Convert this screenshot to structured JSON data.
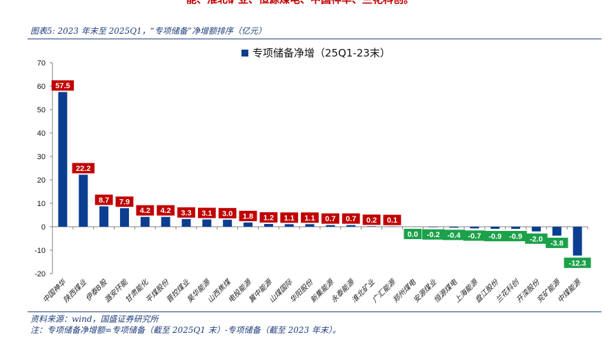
{
  "header": {
    "cut_text": "能、淮北矿业、恒源煤电、中国神华、兰花科创。",
    "figure_title": "图表5:  2023 年末至 2025Q1，“专项储备”净增额排序（亿元）"
  },
  "footer": {
    "source": "资料来源：wind，国盛证券研究所",
    "note": "注：专项储备净增额=专项储备（截至 2025Q1 末）-专项储备（截至 2023 年末）。"
  },
  "colors": {
    "bar": "#0b3d91",
    "positive_label_bg": "#c00000",
    "negative_label_bg": "#1ca14a",
    "rule": "#1f3d7a"
  },
  "chart_data": {
    "type": "bar",
    "legend": "专项储备净增（25Q1-23末）",
    "legend_position": "top-center",
    "ylim": [
      -20,
      70
    ],
    "yticks": [
      70,
      60,
      50,
      40,
      30,
      20,
      10,
      0,
      -10,
      -20
    ],
    "grid": false,
    "categories": [
      "中国神华",
      "陕西煤业",
      "伊泰B股",
      "潞安环能",
      "甘肃能化",
      "平煤股份",
      "晋控煤业",
      "昊华能源",
      "山西焦煤",
      "电投能源",
      "冀中能源",
      "山煤国际",
      "华阳股份",
      "新集能源",
      "永泰能源",
      "淮北矿业",
      "广汇能源",
      "郑州煤电",
      "安源煤业",
      "恒源煤电",
      "上海能源",
      "盘江股份",
      "兰花科创",
      "开滦股份",
      "兖矿能源",
      "中煤能源"
    ],
    "values": [
      57.5,
      22.2,
      8.7,
      7.9,
      4.2,
      4.2,
      3.3,
      3.1,
      3.0,
      1.8,
      1.2,
      1.1,
      1.1,
      0.7,
      0.7,
      0.2,
      0.1,
      0.0,
      -0.2,
      -0.4,
      -0.7,
      -0.9,
      -0.9,
      -2.0,
      -3.8,
      -12.3
    ],
    "value_labels": [
      "57.5",
      "22.2",
      "8.7",
      "7.9",
      "4.2",
      "4.2",
      "3.3",
      "3.1",
      "3.0",
      "1.8",
      "1.2",
      "1.1",
      "1.1",
      "0.7",
      "0.7",
      "0.2",
      "0.1",
      "0.0",
      "-0.2",
      "-0.4",
      "-0.7",
      "-0.9",
      "-0.9",
      "-2.0",
      "-3.8",
      "-12.3"
    ]
  }
}
